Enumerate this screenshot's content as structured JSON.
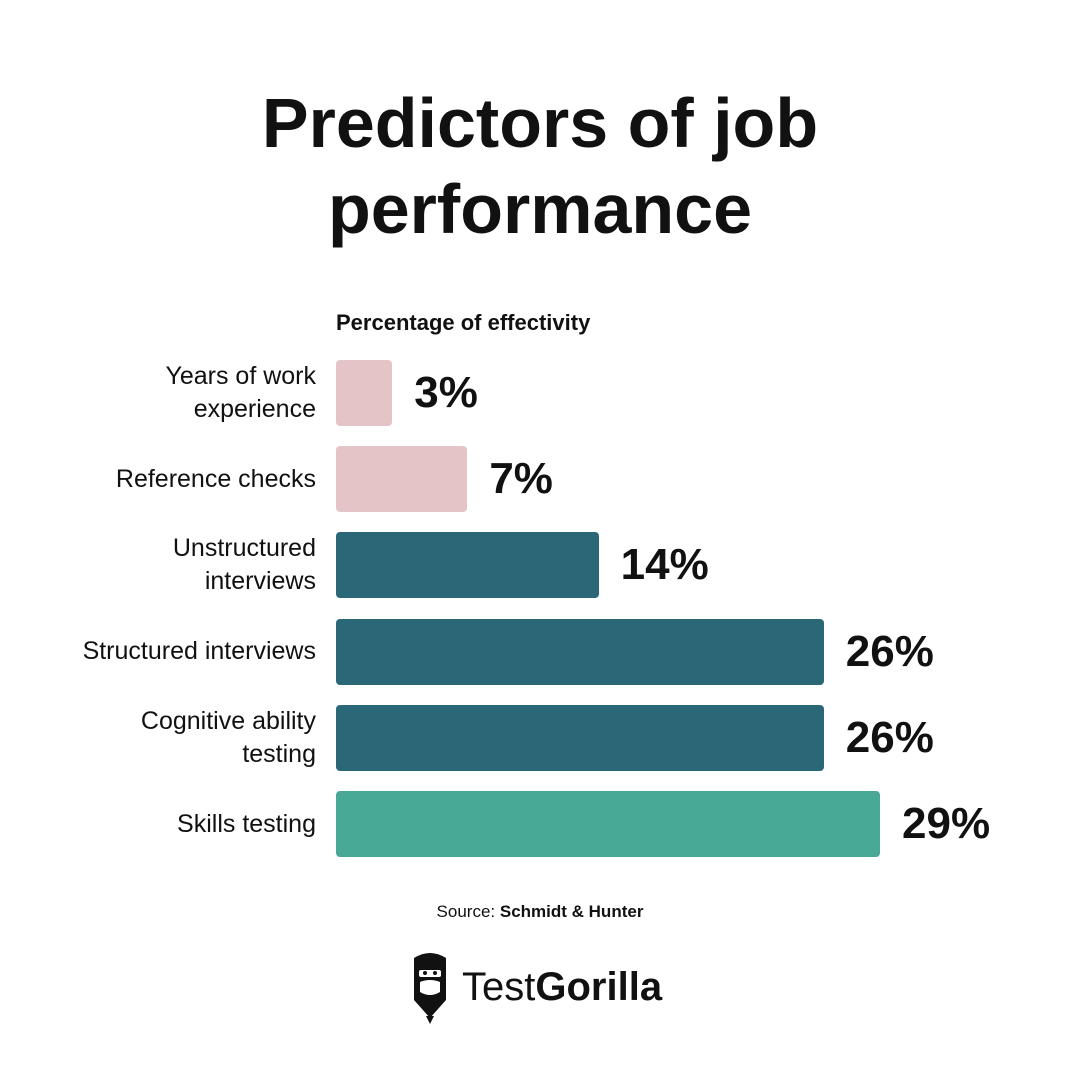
{
  "chart_data": {
    "type": "bar",
    "orientation": "horizontal",
    "title": "Predictors of job performance",
    "subtitle": "Percentage of effectivity",
    "categories": [
      "Years of work experience",
      "Reference checks",
      "Unstructured interviews",
      "Structured interviews",
      "Cognitive ability testing",
      "Skills testing"
    ],
    "values": [
      3,
      7,
      14,
      26,
      26,
      29
    ],
    "value_labels": [
      "3%",
      "7%",
      "14%",
      "26%",
      "26%",
      "29%"
    ],
    "colors": [
      "#e4c4c6",
      "#e4c4c6",
      "#2a6878",
      "#2a6878",
      "#2a6878",
      "#48a996"
    ],
    "source_label": "Source:",
    "source": "Schmidt & Hunter",
    "logo_text": [
      "Test",
      "Gorilla"
    ]
  }
}
